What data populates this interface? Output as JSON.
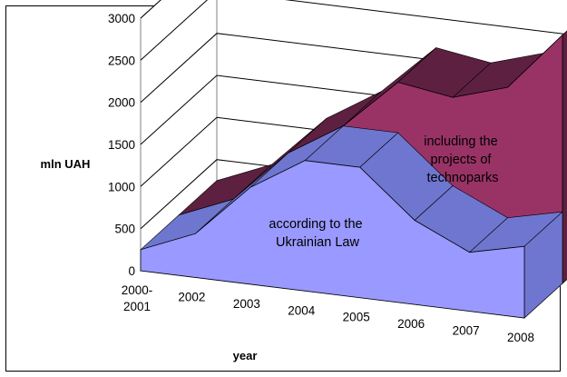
{
  "chart_data": {
    "type": "area",
    "categories": [
      "2000-2001",
      "2002",
      "2003",
      "2004",
      "2005",
      "2006",
      "2007",
      "2008"
    ],
    "series": [
      {
        "name": "according to the Ukrainian Law",
        "values": [
          250,
          520,
          1150,
          1550,
          1550,
          1000,
          700,
          850
        ]
      },
      {
        "name": "including the projects of technoparks",
        "values": [
          250,
          520,
          1150,
          1550,
          2150,
          2050,
          2250,
          2950
        ]
      }
    ],
    "ylabel": "mln UAH",
    "xlabel": "year",
    "ylim": [
      0,
      3000
    ],
    "yticks": [
      "0",
      "500",
      "1000",
      "1500",
      "2000",
      "2500",
      "3000"
    ],
    "grid": true,
    "view": "3d",
    "annotations": {
      "back": [
        "including the",
        "projects of",
        "technoparks"
      ],
      "front": [
        "according to the",
        "Ukrainian Law"
      ]
    },
    "colors": {
      "front": "#9999ff",
      "front_side": "#6f76cf",
      "back": "#993366",
      "back_side": "#5e2040",
      "gridline": "#000000"
    }
  }
}
